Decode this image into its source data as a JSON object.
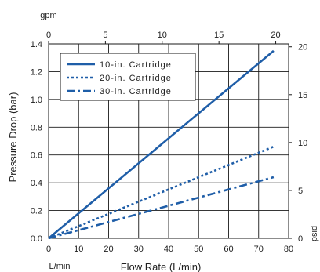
{
  "chart_data": {
    "type": "line",
    "xlabel": "Flow Rate (L/min)",
    "ylabel": "Pressure Drop (bar)",
    "x_unit_label": "L/min",
    "top_axis_label": "gpm",
    "right_axis_label": "psid",
    "xlim": [
      0,
      80
    ],
    "ylim": [
      0,
      1.4
    ],
    "x_ticks": [
      0,
      10,
      20,
      30,
      40,
      50,
      60,
      70,
      80
    ],
    "y_ticks": [
      0.0,
      0.2,
      0.4,
      0.6,
      0.8,
      1.0,
      1.2,
      1.4
    ],
    "y_tick_labels": [
      "0.0",
      "0.2",
      "0.4",
      "0.6",
      "0.8",
      "1.0",
      "1.2",
      "1.4"
    ],
    "top_ticks": [
      0,
      5,
      10,
      15,
      20
    ],
    "top_tick_lpm_per_gpm": 3.785,
    "right_ticks": [
      0,
      5,
      10,
      15,
      20
    ],
    "right_tick_bar_per_psi": 0.0689476,
    "grid": true,
    "legend_position": "top-left",
    "series": [
      {
        "name": "10-in. Cartridge",
        "style": "solid",
        "x": [
          0,
          75
        ],
        "y": [
          0,
          1.35
        ]
      },
      {
        "name": "20-in. Cartridge",
        "style": "dotted",
        "x": [
          0,
          75
        ],
        "y": [
          0,
          0.66
        ]
      },
      {
        "name": "30-in. Cartridge",
        "style": "dashdot",
        "x": [
          0,
          75
        ],
        "y": [
          0,
          0.44
        ]
      }
    ],
    "colors": {
      "line": "#1f5ea8",
      "grid": "#1a1a1a",
      "text": "#1f1f1f"
    }
  }
}
